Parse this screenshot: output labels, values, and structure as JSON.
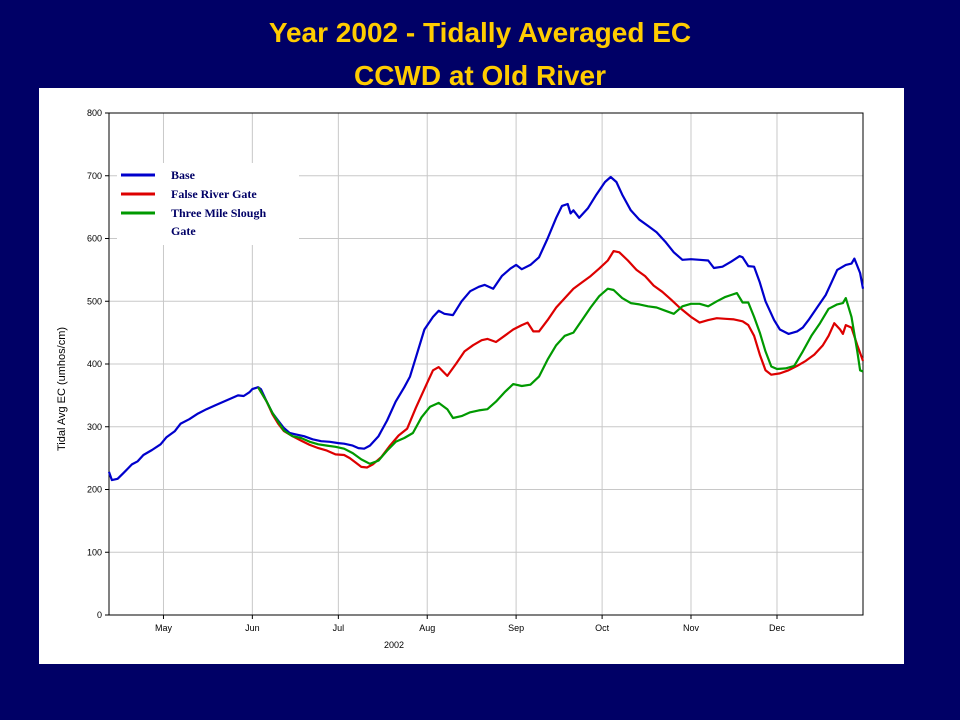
{
  "title": "Year 2002 - Tidally Averaged EC",
  "subtitle": "CCWD at Old River",
  "colors": {
    "background": "#000066",
    "title": "#ffcc00",
    "panel": "#ffffff",
    "grid": "#c8c8c8"
  },
  "chart_data": {
    "type": "line",
    "title": "Year 2002 - Tidally Averaged EC",
    "subtitle": "CCWD at Old River",
    "xlabel": "2002",
    "ylabel": "Tidal Avg EC (umhos/cm)",
    "ylim": [
      0,
      800
    ],
    "xlim": [
      "2002-04-12",
      "2002-12-31"
    ],
    "yticks": [
      "0",
      "100",
      "200",
      "300",
      "400",
      "500",
      "600",
      "700",
      "800"
    ],
    "xticks": [
      {
        "label": "May",
        "date": "2002-05-01"
      },
      {
        "label": "Jun",
        "date": "2002-06-01"
      },
      {
        "label": "Jul",
        "date": "2002-07-01"
      },
      {
        "label": "Aug",
        "date": "2002-08-01"
      },
      {
        "label": "Sep",
        "date": "2002-09-01"
      },
      {
        "label": "Oct",
        "date": "2002-10-01"
      },
      {
        "label": "Nov",
        "date": "2002-11-01"
      },
      {
        "label": "Dec",
        "date": "2002-12-01"
      }
    ],
    "grid": true,
    "legend_position": "top-left",
    "series": [
      {
        "name": "Base",
        "color": "#0000cc",
        "points": [
          [
            "2002-04-12",
            228
          ],
          [
            "2002-04-13",
            215
          ],
          [
            "2002-04-15",
            217
          ],
          [
            "2002-04-17",
            226
          ],
          [
            "2002-04-20",
            240
          ],
          [
            "2002-04-22",
            245
          ],
          [
            "2002-04-24",
            255
          ],
          [
            "2002-04-27",
            263
          ],
          [
            "2002-04-30",
            272
          ],
          [
            "2002-05-02",
            283
          ],
          [
            "2002-05-05",
            293
          ],
          [
            "2002-05-07",
            305
          ],
          [
            "2002-05-10",
            312
          ],
          [
            "2002-05-13",
            321
          ],
          [
            "2002-05-16",
            328
          ],
          [
            "2002-05-19",
            334
          ],
          [
            "2002-05-22",
            340
          ],
          [
            "2002-05-25",
            346
          ],
          [
            "2002-05-27",
            350
          ],
          [
            "2002-05-29",
            349
          ],
          [
            "2002-05-31",
            355
          ],
          [
            "2002-06-01",
            360
          ],
          [
            "2002-06-03",
            363
          ],
          [
            "2002-06-04",
            360
          ],
          [
            "2002-06-06",
            340
          ],
          [
            "2002-06-08",
            322
          ],
          [
            "2002-06-10",
            310
          ],
          [
            "2002-06-12",
            298
          ],
          [
            "2002-06-14",
            290
          ],
          [
            "2002-06-16",
            288
          ],
          [
            "2002-06-19",
            285
          ],
          [
            "2002-06-22",
            280
          ],
          [
            "2002-06-25",
            277
          ],
          [
            "2002-06-28",
            276
          ],
          [
            "2002-07-01",
            274
          ],
          [
            "2002-07-03",
            273
          ],
          [
            "2002-07-06",
            270
          ],
          [
            "2002-07-08",
            266
          ],
          [
            "2002-07-10",
            265
          ],
          [
            "2002-07-12",
            270
          ],
          [
            "2002-07-15",
            285
          ],
          [
            "2002-07-18",
            310
          ],
          [
            "2002-07-21",
            340
          ],
          [
            "2002-07-24",
            363
          ],
          [
            "2002-07-26",
            380
          ],
          [
            "2002-07-28",
            410
          ],
          [
            "2002-07-31",
            455
          ],
          [
            "2002-08-03",
            475
          ],
          [
            "2002-08-05",
            485
          ],
          [
            "2002-08-07",
            480
          ],
          [
            "2002-08-10",
            478
          ],
          [
            "2002-08-13",
            500
          ],
          [
            "2002-08-16",
            516
          ],
          [
            "2002-08-19",
            523
          ],
          [
            "2002-08-21",
            526
          ],
          [
            "2002-08-24",
            520
          ],
          [
            "2002-08-27",
            540
          ],
          [
            "2002-08-30",
            552
          ],
          [
            "2002-09-01",
            558
          ],
          [
            "2002-09-03",
            551
          ],
          [
            "2002-09-06",
            558
          ],
          [
            "2002-09-09",
            570
          ],
          [
            "2002-09-12",
            600
          ],
          [
            "2002-09-15",
            633
          ],
          [
            "2002-09-17",
            652
          ],
          [
            "2002-09-19",
            655
          ],
          [
            "2002-09-20",
            640
          ],
          [
            "2002-09-21",
            645
          ],
          [
            "2002-09-23",
            633
          ],
          [
            "2002-09-26",
            648
          ],
          [
            "2002-09-29",
            670
          ],
          [
            "2002-10-02",
            690
          ],
          [
            "2002-10-04",
            698
          ],
          [
            "2002-10-06",
            690
          ],
          [
            "2002-10-08",
            670
          ],
          [
            "2002-10-11",
            645
          ],
          [
            "2002-10-14",
            630
          ],
          [
            "2002-10-17",
            620
          ],
          [
            "2002-10-20",
            610
          ],
          [
            "2002-10-23",
            595
          ],
          [
            "2002-10-26",
            578
          ],
          [
            "2002-10-29",
            566
          ],
          [
            "2002-11-01",
            567
          ],
          [
            "2002-11-04",
            566
          ],
          [
            "2002-11-07",
            565
          ],
          [
            "2002-11-09",
            553
          ],
          [
            "2002-11-12",
            555
          ],
          [
            "2002-11-15",
            563
          ],
          [
            "2002-11-18",
            572
          ],
          [
            "2002-11-19",
            570
          ],
          [
            "2002-11-21",
            556
          ],
          [
            "2002-11-23",
            555
          ],
          [
            "2002-11-25",
            530
          ],
          [
            "2002-11-27",
            500
          ],
          [
            "2002-11-30",
            470
          ],
          [
            "2002-12-02",
            455
          ],
          [
            "2002-12-05",
            448
          ],
          [
            "2002-12-08",
            452
          ],
          [
            "2002-12-10",
            458
          ],
          [
            "2002-12-12",
            470
          ],
          [
            "2002-12-15",
            490
          ],
          [
            "2002-12-18",
            510
          ],
          [
            "2002-12-20",
            530
          ],
          [
            "2002-12-22",
            550
          ],
          [
            "2002-12-25",
            558
          ],
          [
            "2002-12-27",
            560
          ],
          [
            "2002-12-28",
            568
          ],
          [
            "2002-12-30",
            545
          ],
          [
            "2002-12-31",
            520
          ]
        ]
      },
      {
        "name": "False River Gate",
        "color": "#dd0000",
        "points": [
          [
            "2002-06-03",
            363
          ],
          [
            "2002-06-06",
            340
          ],
          [
            "2002-06-08",
            320
          ],
          [
            "2002-06-10",
            305
          ],
          [
            "2002-06-12",
            293
          ],
          [
            "2002-06-15",
            285
          ],
          [
            "2002-06-18",
            278
          ],
          [
            "2002-06-21",
            271
          ],
          [
            "2002-06-24",
            266
          ],
          [
            "2002-06-27",
            262
          ],
          [
            "2002-06-30",
            256
          ],
          [
            "2002-07-03",
            255
          ],
          [
            "2002-07-05",
            250
          ],
          [
            "2002-07-07",
            243
          ],
          [
            "2002-07-09",
            236
          ],
          [
            "2002-07-11",
            235
          ],
          [
            "2002-07-13",
            240
          ],
          [
            "2002-07-16",
            252
          ],
          [
            "2002-07-19",
            270
          ],
          [
            "2002-07-22",
            286
          ],
          [
            "2002-07-25",
            297
          ],
          [
            "2002-07-28",
            330
          ],
          [
            "2002-08-01",
            370
          ],
          [
            "2002-08-03",
            390
          ],
          [
            "2002-08-05",
            395
          ],
          [
            "2002-08-08",
            381
          ],
          [
            "2002-08-11",
            400
          ],
          [
            "2002-08-14",
            420
          ],
          [
            "2002-08-17",
            430
          ],
          [
            "2002-08-20",
            438
          ],
          [
            "2002-08-22",
            440
          ],
          [
            "2002-08-25",
            435
          ],
          [
            "2002-08-28",
            445
          ],
          [
            "2002-08-31",
            455
          ],
          [
            "2002-09-03",
            462
          ],
          [
            "2002-09-05",
            466
          ],
          [
            "2002-09-07",
            452
          ],
          [
            "2002-09-09",
            452
          ],
          [
            "2002-09-12",
            470
          ],
          [
            "2002-09-15",
            490
          ],
          [
            "2002-09-18",
            505
          ],
          [
            "2002-09-21",
            520
          ],
          [
            "2002-09-24",
            530
          ],
          [
            "2002-09-27",
            540
          ],
          [
            "2002-09-30",
            552
          ],
          [
            "2002-10-03",
            565
          ],
          [
            "2002-10-05",
            580
          ],
          [
            "2002-10-07",
            578
          ],
          [
            "2002-10-10",
            565
          ],
          [
            "2002-10-13",
            550
          ],
          [
            "2002-10-16",
            540
          ],
          [
            "2002-10-19",
            525
          ],
          [
            "2002-10-22",
            515
          ],
          [
            "2002-10-25",
            503
          ],
          [
            "2002-10-28",
            490
          ],
          [
            "2002-11-01",
            475
          ],
          [
            "2002-11-04",
            466
          ],
          [
            "2002-11-07",
            470
          ],
          [
            "2002-11-10",
            473
          ],
          [
            "2002-11-13",
            472
          ],
          [
            "2002-11-16",
            471
          ],
          [
            "2002-11-19",
            468
          ],
          [
            "2002-11-21",
            462
          ],
          [
            "2002-11-23",
            445
          ],
          [
            "2002-11-25",
            415
          ],
          [
            "2002-11-27",
            390
          ],
          [
            "2002-11-29",
            383
          ],
          [
            "2002-12-02",
            385
          ],
          [
            "2002-12-05",
            390
          ],
          [
            "2002-12-08",
            397
          ],
          [
            "2002-12-11",
            405
          ],
          [
            "2002-12-14",
            415
          ],
          [
            "2002-12-17",
            430
          ],
          [
            "2002-12-19",
            445
          ],
          [
            "2002-12-21",
            465
          ],
          [
            "2002-12-23",
            455
          ],
          [
            "2002-12-24",
            448
          ],
          [
            "2002-12-25",
            462
          ],
          [
            "2002-12-27",
            458
          ],
          [
            "2002-12-29",
            430
          ],
          [
            "2002-12-31",
            405
          ]
        ]
      },
      {
        "name": "Three Mile Slough Gate",
        "color": "#009900",
        "points": [
          [
            "2002-06-03",
            363
          ],
          [
            "2002-06-06",
            340
          ],
          [
            "2002-06-08",
            322
          ],
          [
            "2002-06-10",
            308
          ],
          [
            "2002-06-12",
            294
          ],
          [
            "2002-06-15",
            285
          ],
          [
            "2002-06-18",
            282
          ],
          [
            "2002-06-21",
            276
          ],
          [
            "2002-06-24",
            272
          ],
          [
            "2002-06-27",
            270
          ],
          [
            "2002-06-30",
            268
          ],
          [
            "2002-07-03",
            265
          ],
          [
            "2002-07-06",
            258
          ],
          [
            "2002-07-09",
            248
          ],
          [
            "2002-07-12",
            241
          ],
          [
            "2002-07-15",
            246
          ],
          [
            "2002-07-18",
            262
          ],
          [
            "2002-07-21",
            276
          ],
          [
            "2002-07-24",
            282
          ],
          [
            "2002-07-27",
            290
          ],
          [
            "2002-07-30",
            315
          ],
          [
            "2002-08-02",
            332
          ],
          [
            "2002-08-05",
            338
          ],
          [
            "2002-08-08",
            328
          ],
          [
            "2002-08-10",
            314
          ],
          [
            "2002-08-13",
            317
          ],
          [
            "2002-08-16",
            323
          ],
          [
            "2002-08-19",
            326
          ],
          [
            "2002-08-22",
            328
          ],
          [
            "2002-08-25",
            340
          ],
          [
            "2002-08-28",
            355
          ],
          [
            "2002-08-31",
            368
          ],
          [
            "2002-09-03",
            365
          ],
          [
            "2002-09-06",
            367
          ],
          [
            "2002-09-09",
            380
          ],
          [
            "2002-09-12",
            407
          ],
          [
            "2002-09-15",
            430
          ],
          [
            "2002-09-18",
            445
          ],
          [
            "2002-09-21",
            450
          ],
          [
            "2002-09-24",
            470
          ],
          [
            "2002-09-27",
            490
          ],
          [
            "2002-09-30",
            508
          ],
          [
            "2002-10-03",
            520
          ],
          [
            "2002-10-05",
            518
          ],
          [
            "2002-10-08",
            505
          ],
          [
            "2002-10-11",
            497
          ],
          [
            "2002-10-14",
            495
          ],
          [
            "2002-10-17",
            492
          ],
          [
            "2002-10-20",
            490
          ],
          [
            "2002-10-23",
            485
          ],
          [
            "2002-10-26",
            480
          ],
          [
            "2002-10-29",
            492
          ],
          [
            "2002-11-01",
            496
          ],
          [
            "2002-11-04",
            496
          ],
          [
            "2002-11-07",
            492
          ],
          [
            "2002-11-10",
            500
          ],
          [
            "2002-11-13",
            507
          ],
          [
            "2002-11-15",
            510
          ],
          [
            "2002-11-17",
            513
          ],
          [
            "2002-11-19",
            498
          ],
          [
            "2002-11-21",
            498
          ],
          [
            "2002-11-23",
            475
          ],
          [
            "2002-11-25",
            450
          ],
          [
            "2002-11-27",
            420
          ],
          [
            "2002-11-29",
            396
          ],
          [
            "2002-12-01",
            392
          ],
          [
            "2002-12-04",
            393
          ],
          [
            "2002-12-07",
            397
          ],
          [
            "2002-12-10",
            420
          ],
          [
            "2002-12-13",
            445
          ],
          [
            "2002-12-16",
            465
          ],
          [
            "2002-12-19",
            488
          ],
          [
            "2002-12-22",
            495
          ],
          [
            "2002-12-24",
            497
          ],
          [
            "2002-12-25",
            505
          ],
          [
            "2002-12-27",
            475
          ],
          [
            "2002-12-29",
            420
          ],
          [
            "2002-12-30",
            390
          ],
          [
            "2002-12-31",
            388
          ]
        ]
      }
    ]
  }
}
